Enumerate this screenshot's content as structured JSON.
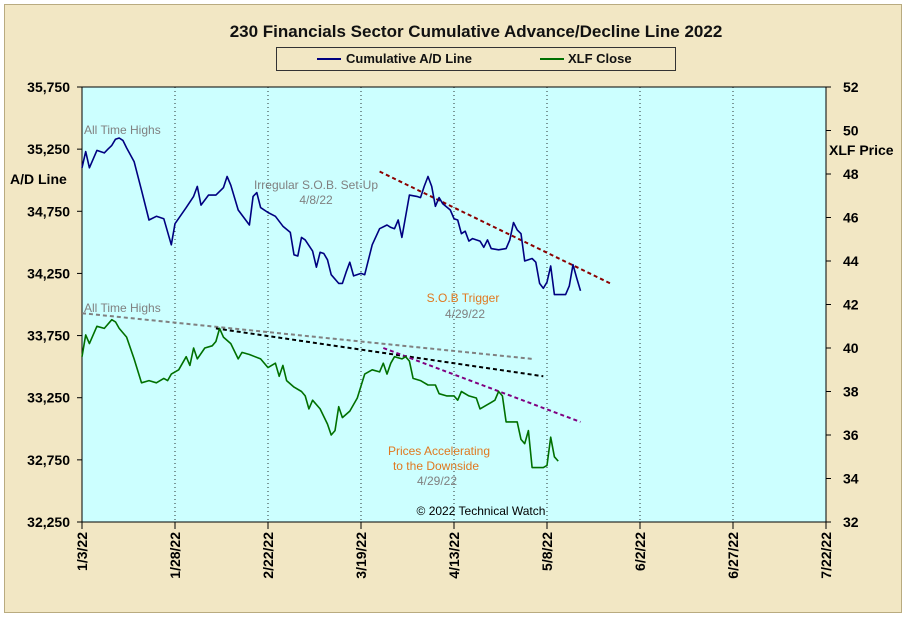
{
  "chart_data": {
    "type": "line",
    "title": "230 Financials  Sector Cumulative  Advance/Decline  Line 2022",
    "ylabel_left": "A/D Line",
    "ylabel_right": "XLF Price",
    "xticks": [
      "1/3/22",
      "1/28/22",
      "2/22/22",
      "3/19/22",
      "4/13/22",
      "5/8/22",
      "6/2/22",
      "6/27/22",
      "7/22/22"
    ],
    "ylim_left": [
      32250,
      35750
    ],
    "yticks_left": [
      "32,250",
      "32,750",
      "33,250",
      "33,750",
      "34,250",
      "34,750",
      "35,250",
      "35,750"
    ],
    "ylim_right": [
      32,
      52
    ],
    "yticks_right": [
      "32",
      "34",
      "36",
      "38",
      "40",
      "42",
      "44",
      "46",
      "48",
      "50",
      "52"
    ],
    "xlim_days": [
      0,
      200
    ],
    "grid": "vertical",
    "legend_position": "top",
    "series": [
      {
        "name": "Cumulative A/D Line",
        "color": "#000080",
        "axis": "left",
        "points": [
          [
            0,
            35100
          ],
          [
            1,
            35230
          ],
          [
            2,
            35100
          ],
          [
            4,
            35240
          ],
          [
            6,
            35220
          ],
          [
            7,
            35250
          ],
          [
            8,
            35280
          ],
          [
            9,
            35330
          ],
          [
            10,
            35340
          ],
          [
            11,
            35320
          ],
          [
            12,
            35260
          ],
          [
            14,
            35150
          ],
          [
            16,
            34920
          ],
          [
            18,
            34680
          ],
          [
            20,
            34710
          ],
          [
            22,
            34690
          ],
          [
            24,
            34480
          ],
          [
            25,
            34650
          ],
          [
            28,
            34780
          ],
          [
            30,
            34870
          ],
          [
            31,
            34950
          ],
          [
            32,
            34800
          ],
          [
            34,
            34880
          ],
          [
            36,
            34880
          ],
          [
            38,
            34940
          ],
          [
            39,
            35030
          ],
          [
            40,
            34960
          ],
          [
            42,
            34760
          ],
          [
            45,
            34640
          ],
          [
            46,
            34870
          ],
          [
            47,
            34900
          ],
          [
            48,
            34780
          ],
          [
            50,
            34740
          ],
          [
            52,
            34710
          ],
          [
            54,
            34630
          ],
          [
            56,
            34580
          ],
          [
            57,
            34400
          ],
          [
            58,
            34390
          ],
          [
            59,
            34540
          ],
          [
            60,
            34520
          ],
          [
            62,
            34430
          ],
          [
            63,
            34300
          ],
          [
            64,
            34420
          ],
          [
            65,
            34410
          ],
          [
            66,
            34360
          ],
          [
            67,
            34240
          ],
          [
            69,
            34170
          ],
          [
            70,
            34170
          ],
          [
            71,
            34260
          ],
          [
            72,
            34340
          ],
          [
            73,
            34230
          ],
          [
            75,
            34250
          ],
          [
            76,
            34240
          ],
          [
            78,
            34480
          ],
          [
            80,
            34610
          ],
          [
            82,
            34640
          ],
          [
            83,
            34620
          ],
          [
            84,
            34610
          ],
          [
            85,
            34680
          ],
          [
            86,
            34540
          ],
          [
            88,
            34880
          ],
          [
            90,
            34870
          ],
          [
            91,
            34860
          ],
          [
            92,
            34950
          ],
          [
            93,
            35030
          ],
          [
            94,
            34950
          ],
          [
            95,
            34790
          ],
          [
            96,
            34860
          ],
          [
            97,
            34810
          ],
          [
            99,
            34760
          ],
          [
            100,
            34690
          ],
          [
            101,
            34680
          ],
          [
            102,
            34570
          ],
          [
            103,
            34590
          ],
          [
            104,
            34510
          ],
          [
            105,
            34530
          ],
          [
            106,
            34520
          ],
          [
            107,
            34510
          ],
          [
            108,
            34460
          ],
          [
            109,
            34520
          ],
          [
            110,
            34450
          ],
          [
            112,
            34440
          ],
          [
            114,
            34450
          ],
          [
            115,
            34520
          ],
          [
            116,
            34660
          ],
          [
            117,
            34600
          ],
          [
            118,
            34570
          ],
          [
            119,
            34350
          ],
          [
            121,
            34370
          ],
          [
            122,
            34340
          ],
          [
            123,
            34170
          ],
          [
            124,
            34130
          ],
          [
            125,
            34180
          ],
          [
            126,
            34310
          ],
          [
            127,
            34080
          ],
          [
            130,
            34080
          ],
          [
            131,
            34150
          ],
          [
            132,
            34320
          ],
          [
            133,
            34210
          ],
          [
            134,
            34110
          ]
        ]
      },
      {
        "name": "XLF Close",
        "color": "#007000",
        "axis": "right",
        "points": [
          [
            0,
            39.6
          ],
          [
            1,
            40.6
          ],
          [
            2,
            40.2
          ],
          [
            4,
            41.0
          ],
          [
            6,
            40.9
          ],
          [
            8,
            41.3
          ],
          [
            9,
            41.2
          ],
          [
            10,
            40.9
          ],
          [
            12,
            40.5
          ],
          [
            14,
            39.5
          ],
          [
            16,
            38.4
          ],
          [
            18,
            38.5
          ],
          [
            20,
            38.4
          ],
          [
            22,
            38.6
          ],
          [
            23,
            38.5
          ],
          [
            24,
            38.8
          ],
          [
            26,
            39.0
          ],
          [
            28,
            39.6
          ],
          [
            29,
            39.2
          ],
          [
            30,
            40.0
          ],
          [
            31,
            39.5
          ],
          [
            33,
            40.0
          ],
          [
            35,
            40.1
          ],
          [
            36,
            40.3
          ],
          [
            37,
            40.9
          ],
          [
            38,
            40.5
          ],
          [
            40,
            40.2
          ],
          [
            42,
            39.5
          ],
          [
            43,
            39.8
          ],
          [
            45,
            39.7
          ],
          [
            48,
            39.5
          ],
          [
            50,
            39.1
          ],
          [
            52,
            39.3
          ],
          [
            53,
            38.7
          ],
          [
            54,
            39.2
          ],
          [
            55,
            38.5
          ],
          [
            57,
            38.2
          ],
          [
            59,
            38.0
          ],
          [
            60,
            37.8
          ],
          [
            61,
            37.2
          ],
          [
            62,
            37.6
          ],
          [
            64,
            37.2
          ],
          [
            66,
            36.5
          ],
          [
            67,
            36.0
          ],
          [
            68,
            36.2
          ],
          [
            69,
            37.3
          ],
          [
            70,
            36.8
          ],
          [
            72,
            37.1
          ],
          [
            74,
            37.7
          ],
          [
            76,
            38.8
          ],
          [
            78,
            39.0
          ],
          [
            80,
            38.9
          ],
          [
            81,
            39.3
          ],
          [
            82,
            38.8
          ],
          [
            83,
            39.3
          ],
          [
            84,
            39.6
          ],
          [
            86,
            39.5
          ],
          [
            87,
            39.6
          ],
          [
            88,
            39.4
          ],
          [
            89,
            38.6
          ],
          [
            91,
            38.5
          ],
          [
            93,
            38.3
          ],
          [
            95,
            38.3
          ],
          [
            96,
            37.9
          ],
          [
            98,
            37.8
          ],
          [
            100,
            37.8
          ],
          [
            101,
            37.6
          ],
          [
            102,
            38.0
          ],
          [
            104,
            37.8
          ],
          [
            106,
            37.7
          ],
          [
            107,
            37.2
          ],
          [
            109,
            37.4
          ],
          [
            110,
            37.5
          ],
          [
            111,
            37.6
          ],
          [
            112,
            38.0
          ],
          [
            113,
            37.8
          ],
          [
            114,
            36.6
          ],
          [
            116,
            36.6
          ],
          [
            117,
            36.6
          ],
          [
            118,
            35.8
          ],
          [
            119,
            35.6
          ],
          [
            120,
            36.2
          ],
          [
            121,
            34.5
          ],
          [
            124,
            34.5
          ],
          [
            125,
            34.6
          ],
          [
            126,
            35.9
          ],
          [
            127,
            35.0
          ],
          [
            128,
            34.8
          ]
        ]
      }
    ],
    "trendlines": [
      {
        "axis": "left",
        "color": "#8b0000",
        "points": [
          [
            80,
            35070
          ],
          [
            142,
            34170
          ]
        ]
      },
      {
        "axis": "right",
        "color": "#808080",
        "points": [
          [
            0,
            41.6
          ],
          [
            121,
            39.5
          ]
        ]
      },
      {
        "axis": "right",
        "color": "#000000",
        "points": [
          [
            36,
            40.9
          ],
          [
            124,
            38.7
          ]
        ]
      },
      {
        "axis": "right",
        "color": "#800080",
        "points": [
          [
            81,
            40.0
          ],
          [
            134,
            36.6
          ]
        ]
      }
    ],
    "annotations": [
      {
        "id": "ath1",
        "text": "All Time Highs",
        "color": "#808080"
      },
      {
        "id": "ath2",
        "text": "All Time Highs",
        "color": "#808080"
      },
      {
        "id": "sob1",
        "text": "Irregular  S.O.B. Set-Up",
        "color": "#808080"
      },
      {
        "id": "sob2",
        "text": "4/8/22",
        "color": "#808080"
      },
      {
        "id": "trig1",
        "text": "S.O.B  Trigger",
        "color": "#e07820"
      },
      {
        "id": "trig2",
        "text": "4/29/22",
        "color": "#808080"
      },
      {
        "id": "acc1",
        "text": "Prices Accelerating",
        "color": "#e07820"
      },
      {
        "id": "acc2",
        "text": "to the Downside",
        "color": "#e07820"
      },
      {
        "id": "acc3",
        "text": "4/29/22",
        "color": "#808080"
      },
      {
        "id": "copy",
        "text": "© 2022  Technical Watch",
        "color": "#000000"
      }
    ]
  },
  "colors": {
    "plot_bg": "#ccffff",
    "frame_bg": "#f2e7c4",
    "grid": "#000000"
  }
}
